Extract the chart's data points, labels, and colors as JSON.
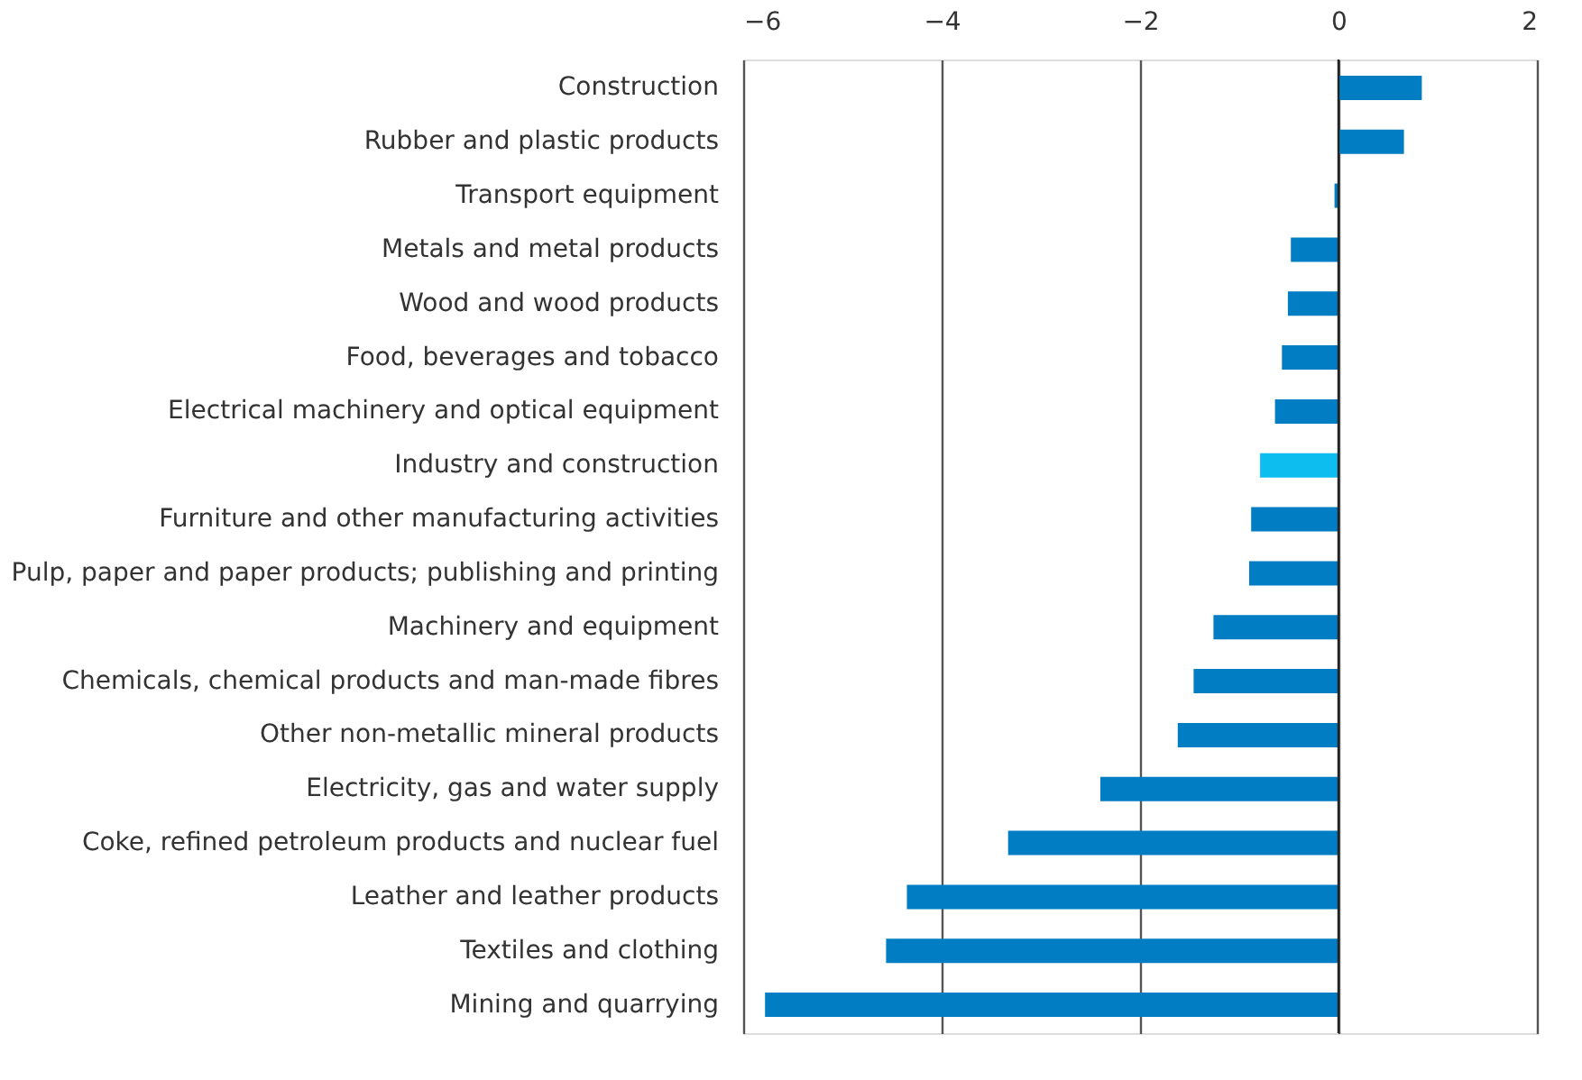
{
  "chart_data": {
    "type": "bar",
    "orientation": "horizontal",
    "categories": [
      "Construction",
      "Rubber and plastic products",
      "Transport equipment",
      "Metals and metal products",
      "Wood and wood products",
      "Food, beverages and tobacco",
      "Electrical machinery and optical equipment",
      "Industry and construction",
      "Furniture and other manufacturing activities",
      "Pulp, paper and paper products; publishing and printing",
      "Machinery and equipment",
      "Chemicals, chemical products and man-made fibres",
      "Other non-metallic mineral products",
      "Electricity, gas and water supply",
      "Coke, refined petroleum products and nuclear fuel",
      "Leather and leather products",
      "Textiles and clothing",
      "Mining and quarrying"
    ],
    "values": [
      0.84,
      0.66,
      -0.04,
      -0.48,
      -0.51,
      -0.57,
      -0.64,
      -0.79,
      -0.88,
      -0.9,
      -1.26,
      -1.46,
      -1.62,
      -2.4,
      -3.33,
      -4.35,
      -4.56,
      -5.78
    ],
    "colors": [
      "#007dc3",
      "#007dc3",
      "#007dc3",
      "#007dc3",
      "#007dc3",
      "#007dc3",
      "#007dc3",
      "#0dbdf0",
      "#007dc3",
      "#007dc3",
      "#007dc3",
      "#007dc3",
      "#007dc3",
      "#007dc3",
      "#007dc3",
      "#007dc3",
      "#007dc3",
      "#007dc3"
    ],
    "xlim": [
      -6,
      2
    ],
    "xticks": [
      -6,
      -4,
      -2,
      0,
      2
    ],
    "grid": "x",
    "legend": false
  }
}
